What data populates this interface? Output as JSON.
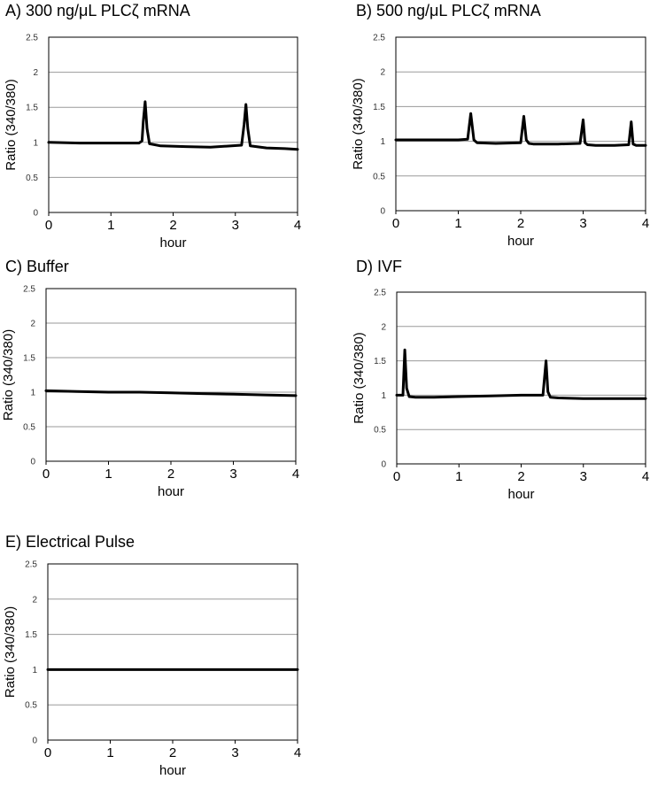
{
  "chart_data": [
    {
      "type": "line",
      "title": "A) 300 ng/μL PLCζ mRNA",
      "xlabel": "hour",
      "ylabel": "Ratio (340/380)",
      "xlim": [
        0,
        4
      ],
      "ylim": [
        0,
        2.5
      ],
      "x_ticks": [
        "0",
        "1",
        "2",
        "3",
        "4"
      ],
      "y_ticks": [
        "0",
        "0.5",
        "1",
        "1.5",
        "2",
        "2.5"
      ],
      "grid": true,
      "series": [
        {
          "x": [
            0,
            0.5,
            1.0,
            1.45,
            1.5,
            1.52,
            1.55,
            1.58,
            1.62,
            1.8,
            2.2,
            2.6,
            3.1,
            3.14,
            3.17,
            3.2,
            3.24,
            3.5,
            3.8,
            4.0
          ],
          "y": [
            1.0,
            0.99,
            0.99,
            0.99,
            1.02,
            1.3,
            1.58,
            1.2,
            0.98,
            0.95,
            0.94,
            0.93,
            0.96,
            1.25,
            1.54,
            1.2,
            0.95,
            0.92,
            0.91,
            0.9
          ]
        }
      ]
    },
    {
      "type": "line",
      "title": "B) 500 ng/μL PLCζ mRNA",
      "xlabel": "hour",
      "ylabel": "Ratio (340/380)",
      "xlim": [
        0,
        4
      ],
      "ylim": [
        0,
        2.5
      ],
      "x_ticks": [
        "0",
        "1",
        "2",
        "3",
        "4"
      ],
      "y_ticks": [
        "0",
        "0.5",
        "1",
        "1.5",
        "2",
        "2.5"
      ],
      "grid": true,
      "series": [
        {
          "x": [
            0,
            0.5,
            1.0,
            1.15,
            1.2,
            1.25,
            1.3,
            1.6,
            2.0,
            2.05,
            2.09,
            2.13,
            2.2,
            2.6,
            2.95,
            3.0,
            3.03,
            3.07,
            3.2,
            3.5,
            3.73,
            3.77,
            3.8,
            3.85,
            4.0
          ],
          "y": [
            1.02,
            1.02,
            1.02,
            1.03,
            1.4,
            1.02,
            0.98,
            0.97,
            0.98,
            1.36,
            1.02,
            0.97,
            0.96,
            0.96,
            0.97,
            1.31,
            0.98,
            0.95,
            0.94,
            0.94,
            0.95,
            1.28,
            0.96,
            0.94,
            0.94
          ]
        }
      ]
    },
    {
      "type": "line",
      "title": "C) Buffer",
      "xlabel": "hour",
      "ylabel": "Ratio (340/380)",
      "xlim": [
        0,
        4
      ],
      "ylim": [
        0,
        2.5
      ],
      "x_ticks": [
        "0",
        "1",
        "2",
        "3",
        "4"
      ],
      "y_ticks": [
        "0",
        "0.5",
        "1",
        "1.5",
        "2",
        "2.5"
      ],
      "grid": true,
      "series": [
        {
          "x": [
            0,
            0.5,
            1.0,
            1.5,
            2.0,
            2.5,
            3.0,
            3.5,
            4.0
          ],
          "y": [
            1.02,
            1.01,
            1.0,
            1.0,
            0.99,
            0.98,
            0.97,
            0.96,
            0.95
          ]
        }
      ]
    },
    {
      "type": "line",
      "title": "D)  IVF",
      "xlabel": "hour",
      "ylabel": "Ratio (340/380)",
      "xlim": [
        0,
        4
      ],
      "ylim": [
        0,
        2.5
      ],
      "x_ticks": [
        "0",
        "1",
        "2",
        "3",
        "4"
      ],
      "y_ticks": [
        "0",
        "0.5",
        "1",
        "1.5",
        "2",
        "2.5"
      ],
      "grid": true,
      "series": [
        {
          "x": [
            0,
            0.1,
            0.13,
            0.16,
            0.2,
            0.3,
            0.6,
            1.0,
            1.5,
            2.0,
            2.35,
            2.4,
            2.43,
            2.47,
            2.6,
            3.0,
            3.5,
            4.0
          ],
          "y": [
            1.0,
            1.0,
            1.66,
            1.1,
            0.98,
            0.97,
            0.97,
            0.98,
            0.99,
            1.0,
            1.0,
            1.5,
            1.05,
            0.97,
            0.96,
            0.95,
            0.95,
            0.95
          ]
        }
      ]
    },
    {
      "type": "line",
      "title": "E)  Electrical Pulse",
      "xlabel": "hour",
      "ylabel": "Ratio (340/380)",
      "xlim": [
        0,
        4
      ],
      "ylim": [
        0,
        2.5
      ],
      "x_ticks": [
        "0",
        "1",
        "2",
        "3",
        "4"
      ],
      "y_ticks": [
        "0",
        "0.5",
        "1",
        "1.5",
        "2",
        "2.5"
      ],
      "grid": true,
      "series": [
        {
          "x": [
            0,
            0.5,
            1.0,
            1.5,
            2.0,
            2.5,
            3.0,
            3.5,
            4.0
          ],
          "y": [
            1.0,
            1.0,
            1.0,
            1.0,
            1.0,
            1.0,
            1.0,
            1.0,
            1.0
          ]
        }
      ]
    }
  ]
}
